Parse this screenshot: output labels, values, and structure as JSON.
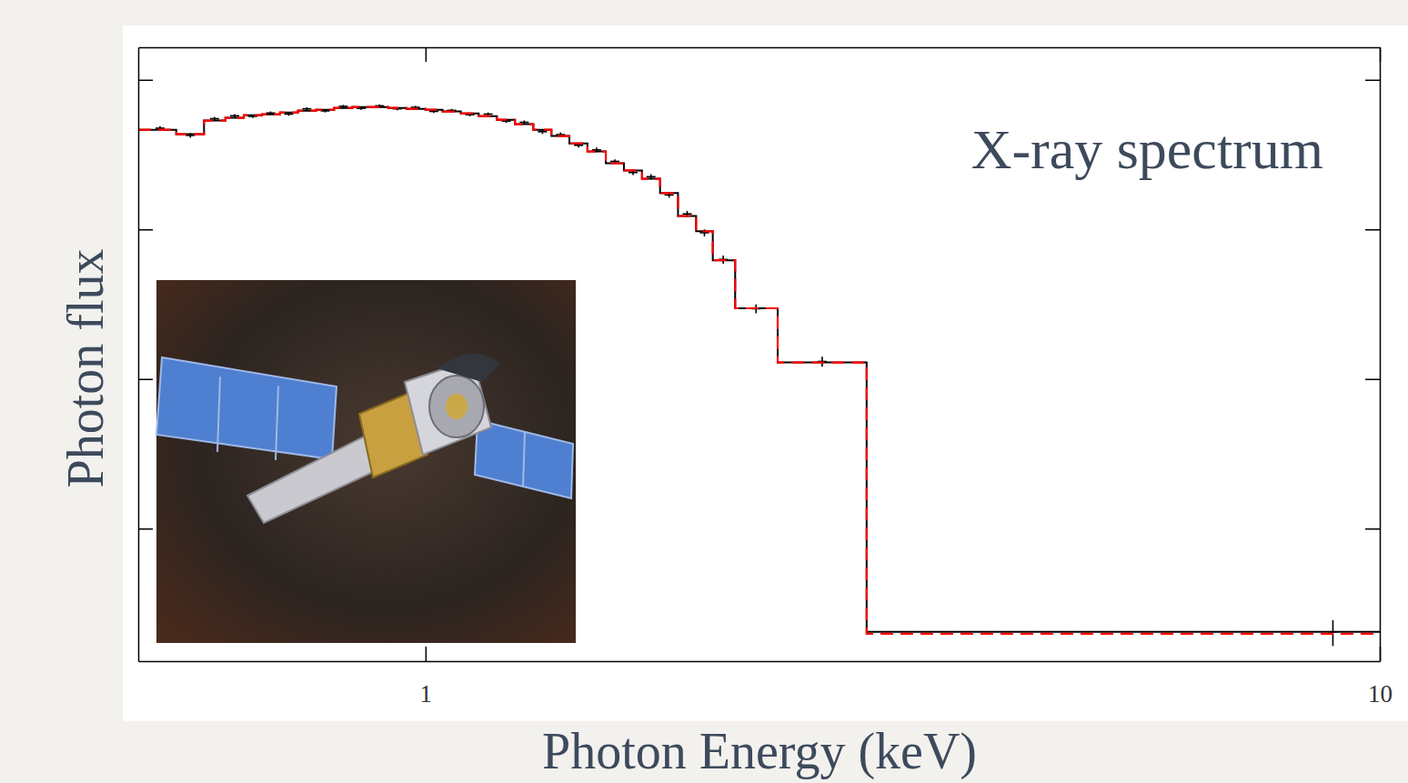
{
  "chart_data": {
    "type": "step",
    "annotation": "X-ray spectrum",
    "x_label": "Photon Energy (keV)",
    "y_label": "Photon flux",
    "log": true,
    "xlim": [
      0.5,
      10
    ],
    "ylim": [
      0.00013,
      1.65
    ],
    "xticks": [
      1,
      10
    ],
    "yticks": [
      0.001,
      0.01,
      0.1,
      1
    ],
    "tick_labels": "x",
    "grid": false,
    "bins": [
      0.5,
      0.548,
      0.586,
      0.617,
      0.645,
      0.674,
      0.704,
      0.735,
      0.768,
      0.802,
      0.838,
      0.875,
      0.914,
      0.955,
      1.0,
      1.042,
      1.089,
      1.137,
      1.188,
      1.241,
      1.297,
      1.355,
      1.415,
      1.478,
      1.545,
      1.614,
      1.686,
      1.761,
      1.839,
      1.921,
      2.0,
      2.111,
      2.339,
      2.899,
      10
    ],
    "series": [
      {
        "type": "scatter",
        "color": "#000000",
        "marker": "cross",
        "x": [
          0.527,
          0.567,
          0.601,
          0.631,
          0.659,
          0.688,
          0.719,
          0.751,
          0.785,
          0.82,
          0.856,
          0.895,
          0.934,
          0.976,
          1.02,
          1.065,
          1.113,
          1.163,
          1.215,
          1.269,
          1.326,
          1.385,
          1.447,
          1.511,
          1.579,
          1.65,
          1.723,
          1.8,
          1.88,
          1.96,
          2.051,
          2.22,
          2.604,
          8.93
        ],
        "values": [
          0.475,
          0.425,
          0.55,
          0.575,
          0.57,
          0.6,
          0.59,
          0.64,
          0.62,
          0.665,
          0.645,
          0.67,
          0.64,
          0.655,
          0.615,
          0.625,
          0.585,
          0.59,
          0.53,
          0.52,
          0.45,
          0.43,
          0.365,
          0.34,
          0.285,
          0.24,
          0.225,
          0.17,
          0.127,
          0.095,
          0.063,
          0.0295,
          0.0131,
          0.000204
        ],
        "errors": [
          0.015,
          0.015,
          0.015,
          0.015,
          0.015,
          0.015,
          0.015,
          0.015,
          0.015,
          0.015,
          0.015,
          0.015,
          0.015,
          0.015,
          0.015,
          0.015,
          0.015,
          0.015,
          0.015,
          0.015,
          0.015,
          0.015,
          0.012,
          0.012,
          0.009,
          0.009,
          0.009,
          0.007,
          0.006,
          0.005,
          0.004,
          0.002,
          0.001,
          4e-05
        ]
      },
      {
        "type": "step",
        "color": "#000000",
        "line_style": "solid",
        "values": [
          0.464,
          0.433,
          0.534,
          0.557,
          0.58,
          0.588,
          0.605,
          0.622,
          0.631,
          0.649,
          0.658,
          0.658,
          0.649,
          0.64,
          0.631,
          0.614,
          0.597,
          0.572,
          0.541,
          0.505,
          0.464,
          0.421,
          0.376,
          0.332,
          0.277,
          0.248,
          0.218,
          0.175,
          0.123,
          0.0972,
          0.0622,
          0.0297,
          0.0129,
          0.000204
        ]
      },
      {
        "type": "step",
        "color": "#ff0000",
        "line_style": "dashed",
        "values": [
          0.464,
          0.433,
          0.534,
          0.557,
          0.58,
          0.588,
          0.605,
          0.622,
          0.631,
          0.649,
          0.658,
          0.658,
          0.649,
          0.64,
          0.631,
          0.614,
          0.597,
          0.572,
          0.541,
          0.505,
          0.464,
          0.421,
          0.376,
          0.332,
          0.277,
          0.248,
          0.218,
          0.175,
          0.123,
          0.0972,
          0.0622,
          0.0297,
          0.0129,
          0.000198
        ]
      }
    ]
  }
}
